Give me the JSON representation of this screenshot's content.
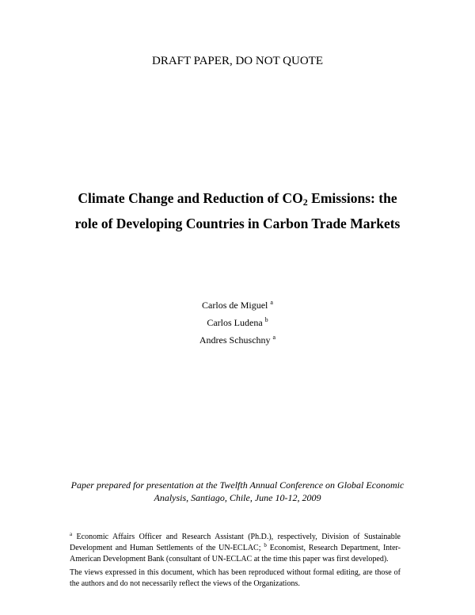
{
  "header": "DRAFT PAPER, DO NOT QUOTE",
  "title": {
    "part1": "Climate Change and Reduction of CO",
    "subscript": "2",
    "part2": " Emissions: the",
    "line2": "role of Developing Countries in Carbon Trade Markets"
  },
  "authors": [
    {
      "name": "Carlos de Miguel ",
      "mark": "a"
    },
    {
      "name": "Carlos Ludena ",
      "mark": "b"
    },
    {
      "name": "Andres Schuschny ",
      "mark": "a"
    }
  ],
  "presentation": {
    "line1": "Paper prepared for presentation at the Twelfth Annual Conference on Global Economic",
    "line2": "Analysis, Santiago, Chile, June 10-12, 2009"
  },
  "footnote": {
    "mark_a": "a",
    "text_a": " Economic Affairs Officer and Research Assistant (Ph.D.), respectively, Division of Sustainable Development and Human Settlements of the UN-ECLAC; ",
    "mark_b": "b",
    "text_b": " Economist, Research Department, Inter-American Development Bank (consultant of UN-ECLAC at the time this paper was first developed)."
  },
  "disclaimer": "The views expressed in this document, which has been reproduced without formal editing, are those of the authors and do not necessarily reflect the views of the Organizations."
}
